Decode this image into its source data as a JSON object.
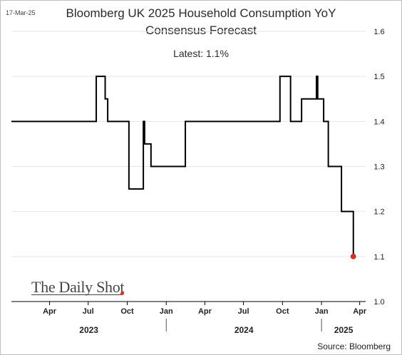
{
  "date_stamp": "17-Mar-25",
  "title_line1": "Bloomberg UK 2025 Household Consumption YoY",
  "title_line2": "Consensus Forecast",
  "latest_label": "Latest:  1.1%",
  "source": "Source: Bloomberg",
  "logo_text": "The Daily Shot",
  "colors": {
    "line": "#000000",
    "marker": "#e8291c",
    "grid": "#e6e6e6",
    "axis": "#000000"
  },
  "chart_data": {
    "type": "line",
    "title": "Bloomberg UK 2025 Household Consumption YoY Consensus Forecast",
    "ylim": [
      1.0,
      1.6
    ],
    "yticks": [
      1.0,
      1.1,
      1.2,
      1.3,
      1.4,
      1.5,
      1.6
    ],
    "ytick_labels": [
      "1.0",
      "1.1",
      "1.2",
      "1.3",
      "1.4",
      "1.5",
      "1.6"
    ],
    "xlim": [
      "2023-01-01",
      "2025-04-15"
    ],
    "x_month_labels": [
      {
        "date": "2023-04-01",
        "label": "Apr"
      },
      {
        "date": "2023-07-01",
        "label": "Jul"
      },
      {
        "date": "2023-10-01",
        "label": "Oct"
      },
      {
        "date": "2024-01-01",
        "label": "Jan"
      },
      {
        "date": "2024-04-01",
        "label": "Apr"
      },
      {
        "date": "2024-07-01",
        "label": "Jul"
      },
      {
        "date": "2024-10-01",
        "label": "Oct"
      },
      {
        "date": "2025-01-01",
        "label": "Jan"
      },
      {
        "date": "2025-04-01",
        "label": "Apr"
      }
    ],
    "x_year_labels": [
      {
        "start": "2023-01-01",
        "end": "2024-01-01",
        "label": "2023"
      },
      {
        "start": "2024-01-01",
        "end": "2025-01-01",
        "label": "2024"
      },
      {
        "start": "2025-01-01",
        "end": "2025-04-15",
        "label": "2025"
      }
    ],
    "grid": true,
    "series": [
      {
        "step": true,
        "points": [
          [
            "2023-01-01",
            1.4
          ],
          [
            "2023-07-20",
            1.5
          ],
          [
            "2023-08-10",
            1.45
          ],
          [
            "2023-08-16",
            1.4
          ],
          [
            "2023-10-05",
            1.25
          ],
          [
            "2023-11-08",
            1.4
          ],
          [
            "2023-11-11",
            1.35
          ],
          [
            "2023-11-26",
            1.3
          ],
          [
            "2024-02-15",
            1.4
          ],
          [
            "2024-09-25",
            1.5
          ],
          [
            "2024-10-20",
            1.4
          ],
          [
            "2024-11-15",
            1.45
          ],
          [
            "2024-12-20",
            1.5
          ],
          [
            "2024-12-23",
            1.45
          ],
          [
            "2025-01-06",
            1.4
          ],
          [
            "2025-01-17",
            1.3
          ],
          [
            "2025-02-17",
            1.2
          ],
          [
            "2025-03-17",
            1.1
          ]
        ]
      }
    ],
    "latest_marker": {
      "date": "2025-03-17",
      "value": 1.1
    }
  }
}
